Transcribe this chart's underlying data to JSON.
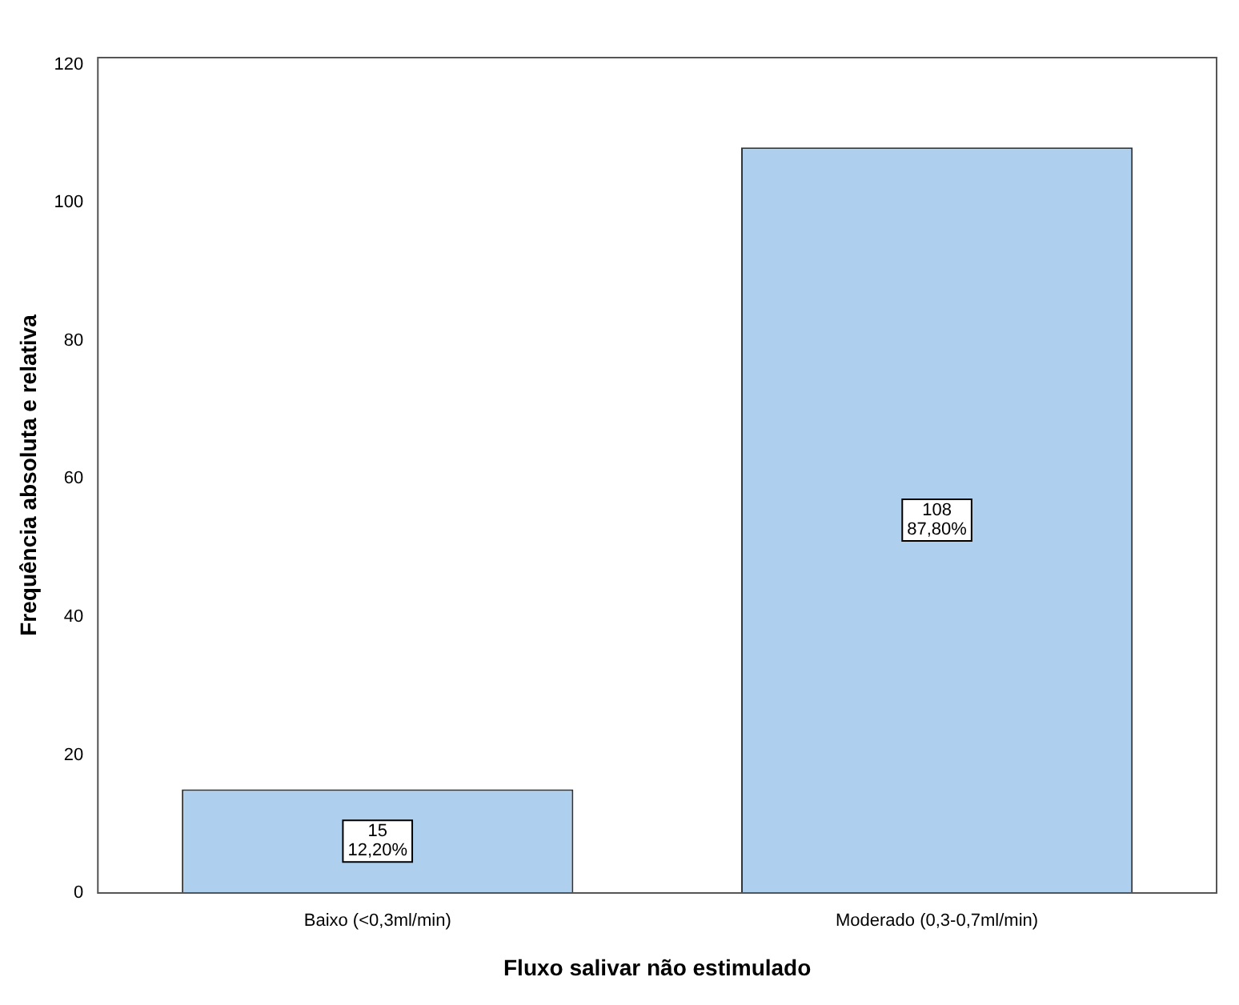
{
  "chart_data": {
    "type": "bar",
    "xlabel": "Fluxo salivar não estimulado",
    "ylabel": "Frequência absoluta e relativa",
    "categories": [
      "Baixo (<0,3ml/min)",
      "Moderado (0,3-0,7ml/min)"
    ],
    "values": [
      15,
      108
    ],
    "value_labels": [
      "15\n12,20%",
      "108\n87,80%"
    ],
    "color": "#aed0ee",
    "ylim": [
      0,
      121
    ],
    "yticks": [
      0,
      20,
      40,
      60,
      80,
      100,
      120
    ],
    "grid": false,
    "legend": false
  }
}
